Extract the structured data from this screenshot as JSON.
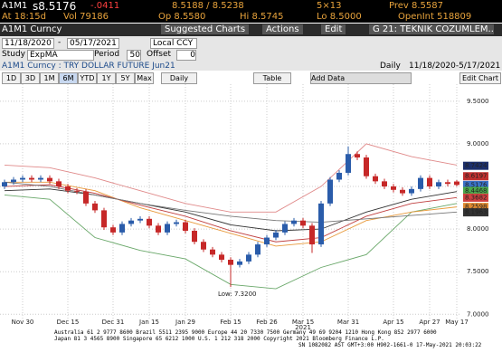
{
  "header": {
    "ticker": "A1M1",
    "last": "s8.5176",
    "change": "-.0411",
    "bid_ask": "8.5188 / 8.5238",
    "size": "5×13",
    "prev": "Prev 8.5587",
    "time": "At 18:15d",
    "vol": "Vol 79186",
    "open": "Op 8.5580",
    "high": "Hi 8.5745",
    "low": "Lo 8.5000",
    "open_int": "OpenInt 518809"
  },
  "toolbar": {
    "security": "A1M1 Curncy",
    "buttons": [
      "Suggested Charts",
      "Actions",
      "Edit",
      "G 21: TEKNIK COZUMLEM..."
    ]
  },
  "range": {
    "start": "11/18/2020",
    "dash": "-",
    "end": "05/17/2021",
    "currency": "Local CCY"
  },
  "study": {
    "label": "Study",
    "name": "ExpMA",
    "period_label": "Period",
    "period": 50,
    "offset_label": "Offset",
    "offset": 0
  },
  "info": {
    "description": "A1M1 Curncy : TRY DOLLAR FUTURE Jun21",
    "frequency": "Daily",
    "dates": "11/18/2020-5/17/2021"
  },
  "periods": [
    "1D",
    "3D",
    "1M",
    "6M",
    "YTD",
    "1Y",
    "5Y",
    "Max"
  ],
  "controls": {
    "frequency": "Daily",
    "table": "Table",
    "add_data": "Add Data",
    "edit_chart": "Edit Chart"
  },
  "chart_data": {
    "type": "candlestick",
    "categories": [
      null,
      null,
      "Nov 30",
      null,
      null,
      null,
      null,
      "Dec 15",
      null,
      null,
      null,
      null,
      "Dec 31",
      null,
      null,
      null,
      "Jan 15",
      null,
      null,
      null,
      "Jan 29",
      null,
      null,
      null,
      null,
      "Feb 15",
      null,
      null,
      null,
      "Feb 26",
      null,
      null,
      null,
      "Mar 15",
      null,
      null,
      null,
      null,
      "Mar 31",
      null,
      null,
      null,
      null,
      "Apr 15",
      null,
      null,
      null,
      "Apr 27",
      null,
      null,
      "May 17"
    ],
    "year_label": "2021",
    "open": [
      8.5,
      8.55,
      8.58,
      8.6,
      8.58,
      8.6,
      8.56,
      8.5,
      8.45,
      8.44,
      8.3,
      8.22,
      8.02,
      7.96,
      8.06,
      8.1,
      8.12,
      8.04,
      7.96,
      8.06,
      8.08,
      7.98,
      7.85,
      7.76,
      7.7,
      7.64,
      7.58,
      7.62,
      7.7,
      7.82,
      7.9,
      7.96,
      8.06,
      8.1,
      8.04,
      7.82,
      8.3,
      8.58,
      8.66,
      8.88,
      8.84,
      8.62,
      8.56,
      8.5,
      8.46,
      8.42,
      8.47,
      8.6,
      8.5,
      8.55,
      8.558
    ],
    "high": [
      8.58,
      8.61,
      8.63,
      8.63,
      8.63,
      8.63,
      8.59,
      8.53,
      8.48,
      8.47,
      8.33,
      8.25,
      8.05,
      8.09,
      8.13,
      8.15,
      8.15,
      8.07,
      8.09,
      8.11,
      8.11,
      8.01,
      7.88,
      7.79,
      7.73,
      7.67,
      7.65,
      7.73,
      7.85,
      7.93,
      7.99,
      8.09,
      8.13,
      8.13,
      8.07,
      8.33,
      8.61,
      8.69,
      8.97,
      8.91,
      8.87,
      8.65,
      8.59,
      8.53,
      8.49,
      8.5,
      8.63,
      8.63,
      8.58,
      8.58,
      8.5745
    ],
    "low": [
      8.47,
      8.52,
      8.55,
      8.55,
      8.55,
      8.53,
      8.47,
      8.42,
      8.41,
      8.27,
      8.19,
      7.99,
      7.93,
      7.93,
      8.03,
      8.07,
      8.01,
      7.93,
      7.93,
      8.03,
      7.95,
      7.82,
      7.73,
      7.67,
      7.61,
      7.32,
      7.55,
      7.59,
      7.67,
      7.79,
      7.87,
      7.93,
      8.03,
      8.01,
      7.72,
      7.79,
      8.27,
      8.55,
      8.63,
      8.81,
      8.59,
      8.53,
      8.47,
      8.43,
      8.39,
      8.39,
      8.44,
      8.47,
      8.47,
      8.5,
      8.5
    ],
    "close": [
      8.55,
      8.58,
      8.6,
      8.58,
      8.6,
      8.56,
      8.5,
      8.45,
      8.44,
      8.3,
      8.22,
      8.02,
      7.96,
      8.06,
      8.1,
      8.12,
      8.04,
      7.96,
      8.06,
      8.08,
      7.98,
      7.85,
      7.76,
      7.7,
      7.64,
      7.58,
      7.62,
      7.7,
      7.82,
      7.9,
      7.96,
      8.06,
      8.1,
      8.04,
      7.82,
      8.3,
      8.58,
      8.66,
      8.88,
      8.84,
      8.62,
      8.56,
      8.5,
      8.46,
      8.42,
      8.47,
      8.6,
      8.5,
      8.55,
      8.53,
      8.5176
    ],
    "up_color": "#2a5caa",
    "down_color": "#c62828",
    "overlays": [
      {
        "color": "#e08a8a",
        "values": [
          8.75,
          8.72,
          8.6,
          8.45,
          8.3,
          8.2,
          8.2,
          8.5,
          9.0,
          8.85,
          8.75
        ]
      },
      {
        "color": "#6aa86a",
        "values": [
          8.4,
          8.35,
          7.9,
          7.75,
          7.65,
          7.35,
          7.3,
          7.55,
          7.7,
          8.2,
          8.3
        ]
      },
      {
        "color": "#333333",
        "values": [
          8.45,
          8.47,
          8.4,
          8.3,
          8.2,
          8.05,
          7.98,
          8.0,
          8.2,
          8.35,
          8.44
        ]
      },
      {
        "color": "#e89a3c",
        "values": [
          8.55,
          8.55,
          8.45,
          8.25,
          8.1,
          7.95,
          7.8,
          7.85,
          8.1,
          8.2,
          8.26
        ]
      },
      {
        "color": "#c04040",
        "values": [
          8.5,
          8.52,
          8.42,
          8.28,
          8.15,
          7.98,
          7.85,
          7.9,
          8.15,
          8.3,
          8.37
        ]
      },
      {
        "color": "#777777",
        "values": [
          8.55,
          8.5,
          8.4,
          8.3,
          8.22,
          8.15,
          8.1,
          8.08,
          8.12,
          8.16,
          8.2
        ]
      }
    ],
    "price_tags": [
      {
        "value": 8.7424,
        "color": "#1c2f6b"
      },
      {
        "value": 8.6197,
        "color": "#c03030"
      },
      {
        "value": 8.5176,
        "color": "#3a72c8"
      },
      {
        "value": 8.4468,
        "color": "#4caa4c"
      },
      {
        "value": 8.3682,
        "color": "#d04040"
      },
      {
        "value": 8.2598,
        "color": "#e08a30"
      },
      {
        "value": 8.1963,
        "color": "#333333"
      }
    ],
    "annotation": "Low: 7.3200",
    "ylim": [
      6.95,
      9.7
    ],
    "yticks": [
      {
        "value": 7,
        "label": "7.0000"
      },
      {
        "value": 7.5,
        "label": "7.5000"
      },
      {
        "value": 8,
        "label": "8.0000"
      },
      {
        "value": 8.5,
        "label": "8.5000"
      },
      {
        "value": 9,
        "label": "9.0000"
      },
      {
        "value": 9.5,
        "label": "9.5000"
      }
    ],
    "grid": true
  },
  "footer": [
    "Australia 61 2 9777 8600 Brazil 5511 2395 9000 Europe 44 20 7330 7500 Germany 49 69 9204 1210 Hong Kong 852 2977 6000",
    "Japan 81 3 4565 8900        Singapore 65 6212 1000        U.S. 1 212 318 2000        Copyright 2021 Bloomberg Finance L.P.",
    "SN 1082082 AST  GMT+3:00 H902-1661-0 17-May-2021 20:03:22"
  ]
}
